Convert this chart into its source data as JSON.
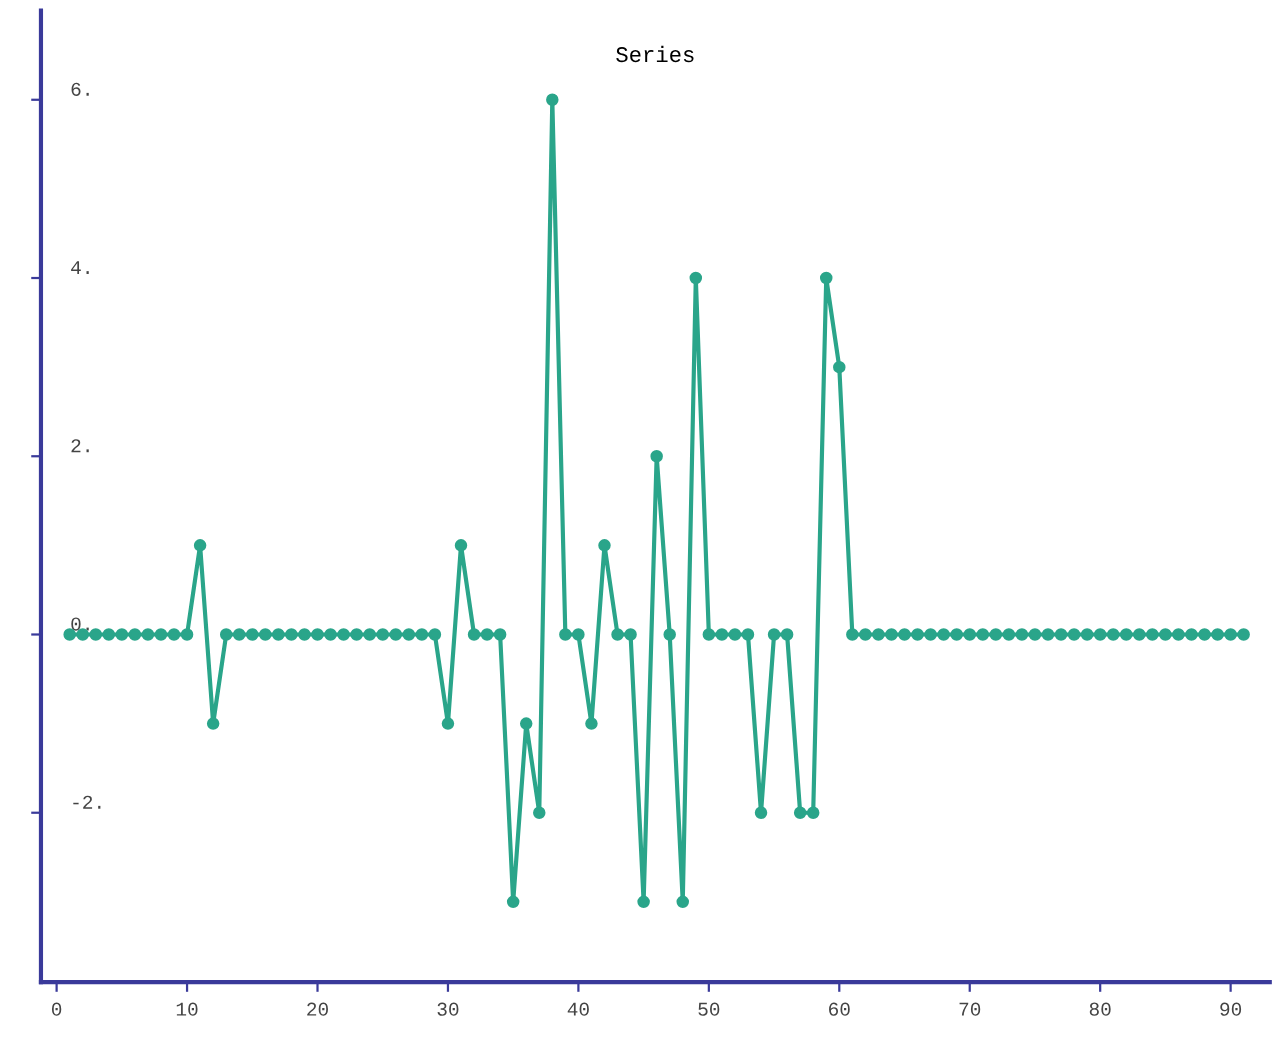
{
  "chart_data": {
    "type": "line",
    "title": "Series",
    "x": [
      1,
      2,
      3,
      4,
      5,
      6,
      7,
      8,
      9,
      10,
      11,
      12,
      13,
      14,
      15,
      16,
      17,
      18,
      19,
      20,
      21,
      22,
      23,
      24,
      25,
      26,
      27,
      28,
      29,
      30,
      31,
      32,
      33,
      34,
      35,
      36,
      37,
      38,
      39,
      40,
      41,
      42,
      43,
      44,
      45,
      46,
      47,
      48,
      49,
      50,
      51,
      52,
      53,
      54,
      55,
      56,
      57,
      58,
      59,
      60,
      61,
      62,
      63,
      64,
      65,
      66,
      67,
      68,
      69,
      70,
      71,
      72,
      73,
      74,
      75,
      76,
      77,
      78,
      79,
      80,
      81,
      82,
      83,
      84,
      85,
      86,
      87,
      88,
      89,
      90,
      91
    ],
    "series": [
      {
        "color": "#2aa58a",
        "values": [
          0,
          0,
          0,
          0,
          0,
          0,
          0,
          0,
          0,
          0,
          1,
          -1,
          0,
          0,
          0,
          0,
          0,
          0,
          0,
          0,
          0,
          0,
          0,
          0,
          0,
          0,
          0,
          0,
          0,
          -1,
          1,
          0,
          0,
          0,
          -3,
          -1,
          -2,
          6,
          0,
          0,
          -1,
          1,
          0,
          0,
          -3,
          2,
          0,
          -3,
          4,
          0,
          0,
          0,
          0,
          -2,
          0,
          0,
          -2,
          -2,
          4,
          3,
          0,
          0,
          0,
          0,
          0,
          0,
          0,
          0,
          0,
          0,
          0,
          0,
          0,
          0,
          0,
          0,
          0,
          0,
          0,
          0,
          0,
          0,
          0,
          0,
          0,
          0,
          0,
          0,
          0,
          0,
          0
        ]
      }
    ],
    "xlim": [
      -1.2,
      93
    ],
    "xticks": [
      0,
      10,
      20,
      30,
      40,
      50,
      60,
      70,
      80,
      90
    ],
    "ylim": [
      -3.9,
      7.0
    ],
    "yticks": [
      {
        "value": 6,
        "label": "6."
      },
      {
        "value": 4,
        "label": "4."
      },
      {
        "value": 2,
        "label": "2."
      },
      {
        "value": 0,
        "label": "0."
      },
      {
        "value": -2,
        "label": "-2."
      }
    ],
    "marker": "circle",
    "line_style": "solid",
    "grid": false,
    "legend": false
  }
}
